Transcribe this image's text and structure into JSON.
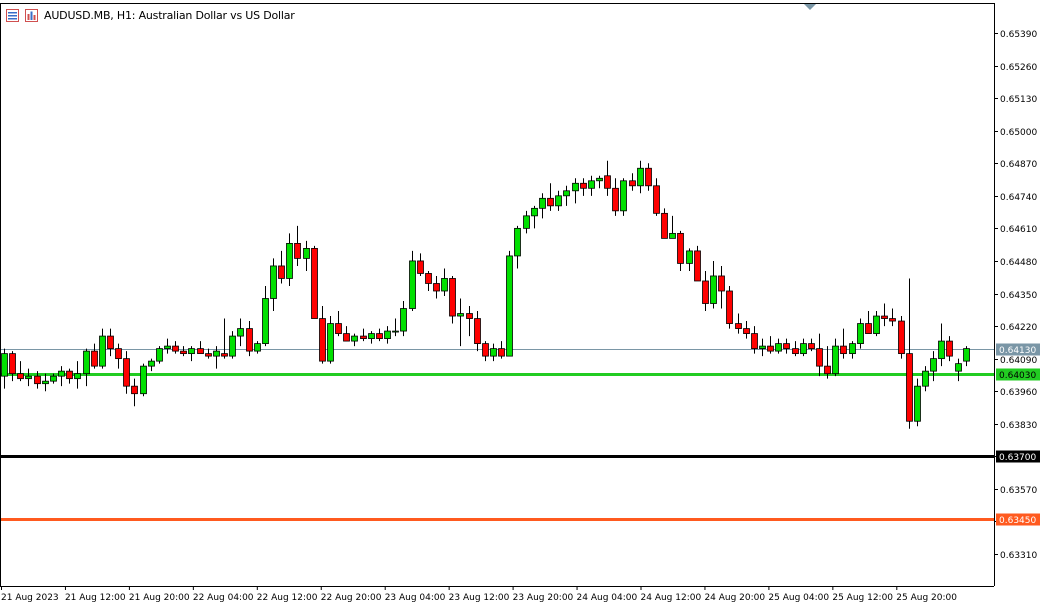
{
  "header": {
    "symbol": "AUDUSD.MB, H1:",
    "description": "Australian Dollar vs US Dollar"
  },
  "colors": {
    "bull": "#00e000",
    "bear": "#ff0000",
    "wick": "#000000",
    "axis": "#000000",
    "bid_line": "#7a96a6",
    "level_green": "#22cc22",
    "level_black": "#000000",
    "level_orange": "#ff5a1f"
  },
  "chart_data": {
    "type": "candlestick",
    "symbol": "AUDUSD.MB",
    "timeframe": "H1",
    "ylim": [
      0.6326,
      0.6542
    ],
    "y_ticks": [
      "0.65390",
      "0.65260",
      "0.65130",
      "0.65000",
      "0.64870",
      "0.64740",
      "0.64610",
      "0.64480",
      "0.64350",
      "0.64220",
      "0.64090",
      "0.63960",
      "0.63830",
      "0.63700",
      "0.63570",
      "0.63440",
      "0.63310"
    ],
    "x_labels": [
      "21 Aug 2023",
      "21 Aug 12:00",
      "21 Aug 20:00",
      "22 Aug 04:00",
      "22 Aug 12:00",
      "22 Aug 20:00",
      "23 Aug 04:00",
      "23 Aug 12:00",
      "23 Aug 20:00",
      "24 Aug 04:00",
      "24 Aug 12:00",
      "24 Aug 20:00",
      "25 Aug 04:00",
      "25 Aug 12:00",
      "25 Aug 20:00"
    ],
    "candles": [
      {
        "o": 0.6402,
        "h": 0.6413,
        "l": 0.6397,
        "c": 0.6411
      },
      {
        "o": 0.6411,
        "h": 0.6412,
        "l": 0.64,
        "c": 0.6403
      },
      {
        "o": 0.6403,
        "h": 0.6408,
        "l": 0.64,
        "c": 0.6401
      },
      {
        "o": 0.6401,
        "h": 0.6405,
        "l": 0.6398,
        "c": 0.6402
      },
      {
        "o": 0.6402,
        "h": 0.6404,
        "l": 0.6397,
        "c": 0.6399
      },
      {
        "o": 0.6399,
        "h": 0.6403,
        "l": 0.6396,
        "c": 0.64
      },
      {
        "o": 0.64,
        "h": 0.6403,
        "l": 0.6399,
        "c": 0.6402
      },
      {
        "o": 0.6402,
        "h": 0.6406,
        "l": 0.6398,
        "c": 0.6404
      },
      {
        "o": 0.6404,
        "h": 0.6405,
        "l": 0.6399,
        "c": 0.6401
      },
      {
        "o": 0.6401,
        "h": 0.6408,
        "l": 0.6397,
        "c": 0.6403
      },
      {
        "o": 0.6403,
        "h": 0.6413,
        "l": 0.6398,
        "c": 0.6412
      },
      {
        "o": 0.6412,
        "h": 0.6415,
        "l": 0.6405,
        "c": 0.6406
      },
      {
        "o": 0.6406,
        "h": 0.6421,
        "l": 0.6405,
        "c": 0.6418
      },
      {
        "o": 0.6418,
        "h": 0.6421,
        "l": 0.641,
        "c": 0.6413
      },
      {
        "o": 0.6413,
        "h": 0.6415,
        "l": 0.6405,
        "c": 0.6409
      },
      {
        "o": 0.6409,
        "h": 0.6412,
        "l": 0.6395,
        "c": 0.6398
      },
      {
        "o": 0.6398,
        "h": 0.6401,
        "l": 0.639,
        "c": 0.6395
      },
      {
        "o": 0.6395,
        "h": 0.6407,
        "l": 0.6394,
        "c": 0.6406
      },
      {
        "o": 0.6406,
        "h": 0.6409,
        "l": 0.6404,
        "c": 0.6408
      },
      {
        "o": 0.6408,
        "h": 0.6414,
        "l": 0.6407,
        "c": 0.6413
      },
      {
        "o": 0.6413,
        "h": 0.6417,
        "l": 0.6411,
        "c": 0.6414
      },
      {
        "o": 0.6414,
        "h": 0.6416,
        "l": 0.6411,
        "c": 0.6412
      },
      {
        "o": 0.6412,
        "h": 0.6414,
        "l": 0.641,
        "c": 0.6411
      },
      {
        "o": 0.6411,
        "h": 0.6414,
        "l": 0.6408,
        "c": 0.6413
      },
      {
        "o": 0.6413,
        "h": 0.6416,
        "l": 0.6411,
        "c": 0.6411
      },
      {
        "o": 0.6411,
        "h": 0.6413,
        "l": 0.6409,
        "c": 0.641
      },
      {
        "o": 0.641,
        "h": 0.6414,
        "l": 0.6405,
        "c": 0.6412
      },
      {
        "o": 0.6411,
        "h": 0.6425,
        "l": 0.6409,
        "c": 0.641
      },
      {
        "o": 0.641,
        "h": 0.642,
        "l": 0.6409,
        "c": 0.6418
      },
      {
        "o": 0.6418,
        "h": 0.6425,
        "l": 0.6414,
        "c": 0.6421
      },
      {
        "o": 0.6421,
        "h": 0.6424,
        "l": 0.641,
        "c": 0.6412
      },
      {
        "o": 0.6412,
        "h": 0.6416,
        "l": 0.6411,
        "c": 0.6415
      },
      {
        "o": 0.6415,
        "h": 0.6438,
        "l": 0.6414,
        "c": 0.6433
      },
      {
        "o": 0.6433,
        "h": 0.6449,
        "l": 0.6428,
        "c": 0.6446
      },
      {
        "o": 0.6446,
        "h": 0.6452,
        "l": 0.6439,
        "c": 0.6441
      },
      {
        "o": 0.6441,
        "h": 0.6459,
        "l": 0.6438,
        "c": 0.6455
      },
      {
        "o": 0.6455,
        "h": 0.6462,
        "l": 0.6446,
        "c": 0.6449
      },
      {
        "o": 0.6449,
        "h": 0.6456,
        "l": 0.6444,
        "c": 0.6453
      },
      {
        "o": 0.6453,
        "h": 0.6454,
        "l": 0.6425,
        "c": 0.6425
      },
      {
        "o": 0.6425,
        "h": 0.643,
        "l": 0.6407,
        "c": 0.6408
      },
      {
        "o": 0.6408,
        "h": 0.6426,
        "l": 0.6407,
        "c": 0.6423
      },
      {
        "o": 0.6423,
        "h": 0.6428,
        "l": 0.6418,
        "c": 0.6419
      },
      {
        "o": 0.6419,
        "h": 0.6422,
        "l": 0.6416,
        "c": 0.6416
      },
      {
        "o": 0.6416,
        "h": 0.6419,
        "l": 0.6414,
        "c": 0.6418
      },
      {
        "o": 0.6418,
        "h": 0.6421,
        "l": 0.6416,
        "c": 0.6417
      },
      {
        "o": 0.6417,
        "h": 0.642,
        "l": 0.6415,
        "c": 0.6419
      },
      {
        "o": 0.6419,
        "h": 0.6421,
        "l": 0.6416,
        "c": 0.6417
      },
      {
        "o": 0.6417,
        "h": 0.6422,
        "l": 0.6415,
        "c": 0.642
      },
      {
        "o": 0.642,
        "h": 0.6425,
        "l": 0.6418,
        "c": 0.642
      },
      {
        "o": 0.642,
        "h": 0.6432,
        "l": 0.6418,
        "c": 0.6429
      },
      {
        "o": 0.6429,
        "h": 0.6452,
        "l": 0.6428,
        "c": 0.6448
      },
      {
        "o": 0.6448,
        "h": 0.6451,
        "l": 0.6442,
        "c": 0.6443
      },
      {
        "o": 0.6443,
        "h": 0.6444,
        "l": 0.6436,
        "c": 0.6439
      },
      {
        "o": 0.6439,
        "h": 0.6442,
        "l": 0.6433,
        "c": 0.6436
      },
      {
        "o": 0.6436,
        "h": 0.6445,
        "l": 0.6434,
        "c": 0.6441
      },
      {
        "o": 0.6441,
        "h": 0.6442,
        "l": 0.6423,
        "c": 0.6426
      },
      {
        "o": 0.6426,
        "h": 0.6433,
        "l": 0.6414,
        "c": 0.6427
      },
      {
        "o": 0.6427,
        "h": 0.643,
        "l": 0.6418,
        "c": 0.6425
      },
      {
        "o": 0.6425,
        "h": 0.6428,
        "l": 0.6412,
        "c": 0.6415
      },
      {
        "o": 0.6415,
        "h": 0.6416,
        "l": 0.6408,
        "c": 0.641
      },
      {
        "o": 0.641,
        "h": 0.6415,
        "l": 0.6408,
        "c": 0.6413
      },
      {
        "o": 0.6413,
        "h": 0.6416,
        "l": 0.6409,
        "c": 0.641
      },
      {
        "o": 0.641,
        "h": 0.6452,
        "l": 0.641,
        "c": 0.645
      },
      {
        "o": 0.645,
        "h": 0.6462,
        "l": 0.6445,
        "c": 0.6461
      },
      {
        "o": 0.6461,
        "h": 0.6468,
        "l": 0.6459,
        "c": 0.6466
      },
      {
        "o": 0.6466,
        "h": 0.647,
        "l": 0.6461,
        "c": 0.6469
      },
      {
        "o": 0.6469,
        "h": 0.6475,
        "l": 0.6465,
        "c": 0.6473
      },
      {
        "o": 0.6473,
        "h": 0.6479,
        "l": 0.6468,
        "c": 0.647
      },
      {
        "o": 0.647,
        "h": 0.6476,
        "l": 0.6468,
        "c": 0.6474
      },
      {
        "o": 0.6474,
        "h": 0.6478,
        "l": 0.647,
        "c": 0.6476
      },
      {
        "o": 0.6476,
        "h": 0.6481,
        "l": 0.6471,
        "c": 0.6479
      },
      {
        "o": 0.6479,
        "h": 0.6481,
        "l": 0.6474,
        "c": 0.6477
      },
      {
        "o": 0.6477,
        "h": 0.6482,
        "l": 0.6474,
        "c": 0.648
      },
      {
        "o": 0.648,
        "h": 0.6482,
        "l": 0.6477,
        "c": 0.6481
      },
      {
        "o": 0.6482,
        "h": 0.6488,
        "l": 0.6474,
        "c": 0.6477
      },
      {
        "o": 0.6477,
        "h": 0.6481,
        "l": 0.6466,
        "c": 0.6468
      },
      {
        "o": 0.6468,
        "h": 0.6481,
        "l": 0.6466,
        "c": 0.648
      },
      {
        "o": 0.648,
        "h": 0.6483,
        "l": 0.6476,
        "c": 0.6478
      },
      {
        "o": 0.6478,
        "h": 0.6488,
        "l": 0.6475,
        "c": 0.6485
      },
      {
        "o": 0.6485,
        "h": 0.6487,
        "l": 0.6476,
        "c": 0.6478
      },
      {
        "o": 0.6478,
        "h": 0.6481,
        "l": 0.6466,
        "c": 0.6467
      },
      {
        "o": 0.6467,
        "h": 0.6469,
        "l": 0.6457,
        "c": 0.6457
      },
      {
        "o": 0.6457,
        "h": 0.6466,
        "l": 0.6457,
        "c": 0.6459
      },
      {
        "o": 0.6459,
        "h": 0.646,
        "l": 0.6444,
        "c": 0.6447
      },
      {
        "o": 0.6447,
        "h": 0.6453,
        "l": 0.6444,
        "c": 0.6452
      },
      {
        "o": 0.6452,
        "h": 0.6454,
        "l": 0.644,
        "c": 0.644
      },
      {
        "o": 0.644,
        "h": 0.6444,
        "l": 0.6428,
        "c": 0.6431
      },
      {
        "o": 0.6431,
        "h": 0.6448,
        "l": 0.6429,
        "c": 0.6442
      },
      {
        "o": 0.6442,
        "h": 0.6446,
        "l": 0.6429,
        "c": 0.6436
      },
      {
        "o": 0.6436,
        "h": 0.6438,
        "l": 0.6421,
        "c": 0.6423
      },
      {
        "o": 0.6423,
        "h": 0.6427,
        "l": 0.6419,
        "c": 0.6421
      },
      {
        "o": 0.6421,
        "h": 0.6424,
        "l": 0.6417,
        "c": 0.6419
      },
      {
        "o": 0.6419,
        "h": 0.6422,
        "l": 0.6411,
        "c": 0.6413
      },
      {
        "o": 0.6413,
        "h": 0.6417,
        "l": 0.641,
        "c": 0.6414
      },
      {
        "o": 0.6414,
        "h": 0.6418,
        "l": 0.6411,
        "c": 0.6412
      },
      {
        "o": 0.6412,
        "h": 0.6417,
        "l": 0.6411,
        "c": 0.6415
      },
      {
        "o": 0.6415,
        "h": 0.6417,
        "l": 0.6411,
        "c": 0.6413
      },
      {
        "o": 0.6413,
        "h": 0.6416,
        "l": 0.641,
        "c": 0.6411
      },
      {
        "o": 0.6411,
        "h": 0.6417,
        "l": 0.641,
        "c": 0.6415
      },
      {
        "o": 0.6415,
        "h": 0.6417,
        "l": 0.6412,
        "c": 0.6413
      },
      {
        "o": 0.6413,
        "h": 0.6419,
        "l": 0.6402,
        "c": 0.6406
      },
      {
        "o": 0.6406,
        "h": 0.6414,
        "l": 0.6401,
        "c": 0.6403
      },
      {
        "o": 0.6403,
        "h": 0.6417,
        "l": 0.6402,
        "c": 0.6414
      },
      {
        "o": 0.6414,
        "h": 0.6421,
        "l": 0.6409,
        "c": 0.6411
      },
      {
        "o": 0.6411,
        "h": 0.6416,
        "l": 0.6409,
        "c": 0.6415
      },
      {
        "o": 0.6415,
        "h": 0.6425,
        "l": 0.6413,
        "c": 0.6423
      },
      {
        "o": 0.6423,
        "h": 0.6428,
        "l": 0.6419,
        "c": 0.6419
      },
      {
        "o": 0.6419,
        "h": 0.6428,
        "l": 0.6418,
        "c": 0.6426
      },
      {
        "o": 0.6426,
        "h": 0.6431,
        "l": 0.6422,
        "c": 0.6425
      },
      {
        "o": 0.6425,
        "h": 0.6429,
        "l": 0.6422,
        "c": 0.6424
      },
      {
        "o": 0.6424,
        "h": 0.6426,
        "l": 0.6409,
        "c": 0.6411
      },
      {
        "o": 0.6411,
        "h": 0.6441,
        "l": 0.6381,
        "c": 0.6384
      },
      {
        "o": 0.6384,
        "h": 0.6401,
        "l": 0.6382,
        "c": 0.6398
      },
      {
        "o": 0.6398,
        "h": 0.6406,
        "l": 0.6396,
        "c": 0.6404
      },
      {
        "o": 0.6404,
        "h": 0.6412,
        "l": 0.64,
        "c": 0.6409
      },
      {
        "o": 0.6409,
        "h": 0.6423,
        "l": 0.6406,
        "c": 0.6416
      },
      {
        "o": 0.6416,
        "h": 0.6418,
        "l": 0.6408,
        "c": 0.641
      },
      {
        "o": 0.6404,
        "h": 0.6409,
        "l": 0.64,
        "c": 0.6407
      },
      {
        "o": 0.6408,
        "h": 0.6414,
        "l": 0.6406,
        "c": 0.6413
      }
    ],
    "levels": [
      {
        "price": 0.6413,
        "label": "0.64130",
        "style": "bid"
      },
      {
        "price": 0.6403,
        "label": "0.64030",
        "style": "green"
      },
      {
        "price": 0.637,
        "label": "0.63700",
        "style": "black"
      },
      {
        "price": 0.6345,
        "label": "0.63450",
        "style": "orange"
      }
    ]
  }
}
